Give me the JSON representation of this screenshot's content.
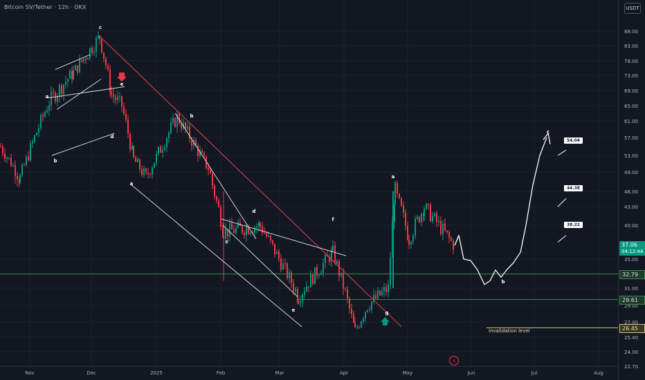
{
  "header": {
    "title": "Bitcoin SV/Tether · 12h · OKX",
    "currency_button": "USDT"
  },
  "axis": {
    "y_ticks": [
      "88.00",
      "83.00",
      "78.00",
      "73.00",
      "69.00",
      "65.00",
      "61.00",
      "57.00",
      "53.00",
      "49.00",
      "46.00",
      "43.00",
      "40.00",
      "35.00",
      "31.00",
      "29.00",
      "27.00",
      "25.40",
      "24.00",
      "22.70"
    ],
    "x_ticks": [
      "Nov",
      "Dec",
      "2025",
      "Feb",
      "Mar",
      "Apr",
      "May",
      "Jun",
      "Jul",
      "Aug"
    ]
  },
  "price_tags": {
    "current_price": "37.06",
    "countdown": "04:12:44",
    "level_1": "32.79",
    "level_2": "29.61",
    "level_3": "26.45"
  },
  "invalidation_text": "invalidation level",
  "projection_labels": [
    "54.04",
    "44.38",
    "38.22"
  ],
  "wave_labels": [
    "c",
    "a",
    "b",
    "e",
    "d",
    "a",
    "b",
    "d",
    "c",
    "e",
    "f",
    "a",
    "g",
    "b",
    "c"
  ],
  "colors": {
    "bull": "#089981",
    "bear": "#f23645",
    "trendline": "#c2404a",
    "support": "#3a8a4e",
    "invalidation": "#c9c27a"
  },
  "chart_data": {
    "type": "candlestick",
    "title": "Bitcoin SV/Tether · 12h · OKX",
    "y_unit": "USDT",
    "ylim": [
      22.7,
      95
    ],
    "x_range": [
      "Oct",
      "Aug"
    ],
    "key_points": [
      {
        "x": "Oct",
        "y": 55
      },
      {
        "x": "Nov",
        "y": 48
      },
      {
        "x": "Nov",
        "y": 66
      },
      {
        "x": "Nov",
        "y": 74
      },
      {
        "x": "Dec",
        "y": 86
      },
      {
        "x": "Dec",
        "y": 68
      },
      {
        "x": "Dec",
        "y": 65
      },
      {
        "x": "2025",
        "y": 52
      },
      {
        "x": "2025",
        "y": 48
      },
      {
        "x": "2025",
        "y": 62
      },
      {
        "x": "Feb",
        "y": 50
      },
      {
        "x": "Feb",
        "y": 39
      },
      {
        "x": "Mar",
        "y": 40
      },
      {
        "x": "Mar",
        "y": 30
      },
      {
        "x": "Apr",
        "y": 36
      },
      {
        "x": "Apr",
        "y": 26
      },
      {
        "x": "Apr",
        "y": 29
      },
      {
        "x": "Apr",
        "y": 31
      },
      {
        "x": "May",
        "y": 46
      },
      {
        "x": "May",
        "y": 38
      },
      {
        "x": "May",
        "y": 43
      },
      {
        "x": "May",
        "y": 37
      }
    ],
    "last_price": 37.06,
    "horizontal_levels": [
      32.79,
      29.61,
      26.45
    ],
    "projection": [
      38.22,
      44.38,
      54.04
    ]
  }
}
